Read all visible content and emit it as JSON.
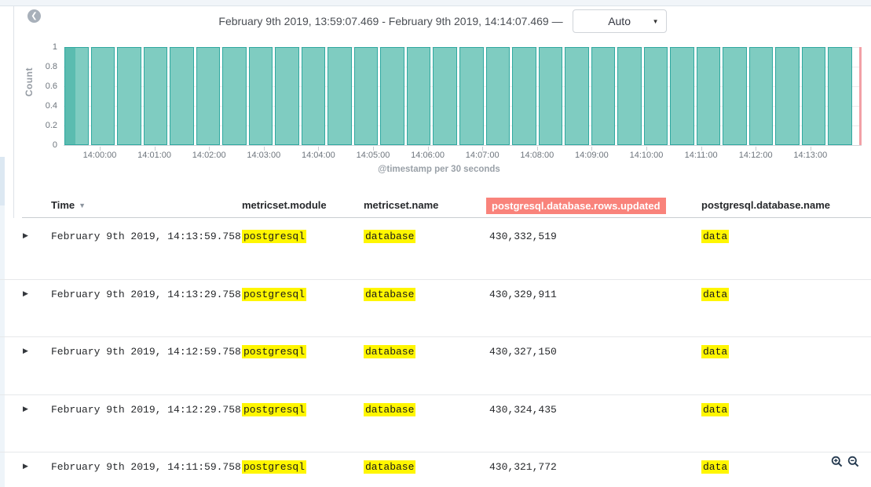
{
  "header": {
    "time_range": "February 9th 2019, 13:59:07.469 - February 9th 2019, 14:14:07.469 —",
    "interval": "Auto"
  },
  "chart_data": {
    "type": "bar",
    "title": "",
    "ylabel": "Count",
    "xlabel": "@timestamp per 30 seconds",
    "ylim": [
      0,
      1
    ],
    "y_ticks": [
      "1",
      "0.8",
      "0.6",
      "0.4",
      "0.2",
      "0"
    ],
    "x_ticks": [
      "14:00:00",
      "14:01:00",
      "14:02:00",
      "14:03:00",
      "14:04:00",
      "14:05:00",
      "14:06:00",
      "14:07:00",
      "14:08:00",
      "14:09:00",
      "14:10:00",
      "14:11:00",
      "14:12:00",
      "14:13:00"
    ],
    "bucket_seconds": 30,
    "values": [
      1,
      1,
      1,
      1,
      1,
      1,
      1,
      1,
      1,
      1,
      1,
      1,
      1,
      1,
      1,
      1,
      1,
      1,
      1,
      1,
      1,
      1,
      1,
      1,
      1,
      1,
      1,
      1,
      1,
      1
    ],
    "first_bar_partial": true,
    "grid": true,
    "legend": "none"
  },
  "table": {
    "columns": [
      {
        "label": "Time",
        "sorted_desc": true
      },
      {
        "label": "metricset.module"
      },
      {
        "label": "metricset.name"
      },
      {
        "label": "postgresql.database.rows.updated",
        "selected": true
      },
      {
        "label": "postgresql.database.name"
      }
    ],
    "rows": [
      {
        "time": "February 9th 2019, 14:13:59.758",
        "module": "postgresql",
        "name": "database",
        "rows_updated": "430,332,519",
        "db_name": "data"
      },
      {
        "time": "February 9th 2019, 14:13:29.758",
        "module": "postgresql",
        "name": "database",
        "rows_updated": "430,329,911",
        "db_name": "data"
      },
      {
        "time": "February 9th 2019, 14:12:59.758",
        "module": "postgresql",
        "name": "database",
        "rows_updated": "430,327,150",
        "db_name": "data"
      },
      {
        "time": "February 9th 2019, 14:12:29.758",
        "module": "postgresql",
        "name": "database",
        "rows_updated": "430,324,435",
        "db_name": "data"
      },
      {
        "time": "February 9th 2019, 14:11:59.758",
        "module": "postgresql",
        "name": "database",
        "rows_updated": "430,321,772",
        "db_name": "data"
      }
    ],
    "highlighted_values": [
      "postgresql",
      "database",
      "data"
    ]
  },
  "icons": {
    "collapse": "chevron-left-icon",
    "interval_caret": "caret-down-icon",
    "row_expand": "caret-right-icon",
    "zoom_in": "zoom-in-icon",
    "zoom_out": "zoom-out-icon"
  },
  "colors": {
    "bar_fill": "#7fccc1",
    "bar_fill_partial": "#5bbcb0",
    "bar_border": "#2fa8a0",
    "time_marker": "#f2a0a6",
    "highlight_mark": "#fff600",
    "selected_column_bg": "#f9837b",
    "top_strip_bg": "#f1f5f9"
  }
}
